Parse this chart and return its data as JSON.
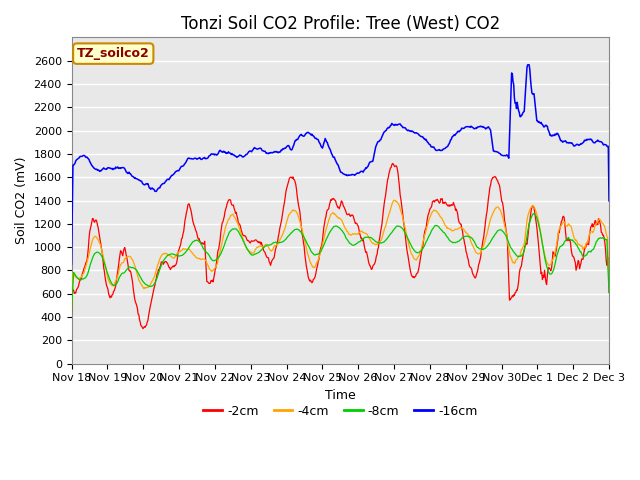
{
  "title": "Tonzi Soil CO2 Profile: Tree (West) CO2",
  "ylabel": "Soil CO2 (mV)",
  "xlabel": "Time",
  "ylim": [
    0,
    2800
  ],
  "yticks": [
    0,
    200,
    400,
    600,
    800,
    1000,
    1200,
    1400,
    1600,
    1800,
    2000,
    2200,
    2400,
    2600
  ],
  "legend_label": "TZ_soilco2",
  "line_colors": {
    "-2cm": "#ff0000",
    "-4cm": "#ffa500",
    "-8cm": "#00cc00",
    "-16cm": "#0000ff"
  },
  "fig_bg_color": "#ffffff",
  "plot_bg_color": "#e8e8e8",
  "grid_color": "#ffffff",
  "x_tick_labels": [
    "Nov 18",
    "Nov 19",
    "Nov 20",
    "Nov 21",
    "Nov 22",
    "Nov 23",
    "Nov 24",
    "Nov 25",
    "Nov 26",
    "Nov 27",
    "Nov 28",
    "Nov 29",
    "Nov 30",
    "Dec 1",
    "Dec 2",
    "Dec 3"
  ],
  "title_fontsize": 12,
  "axis_label_fontsize": 9,
  "tick_fontsize": 8
}
